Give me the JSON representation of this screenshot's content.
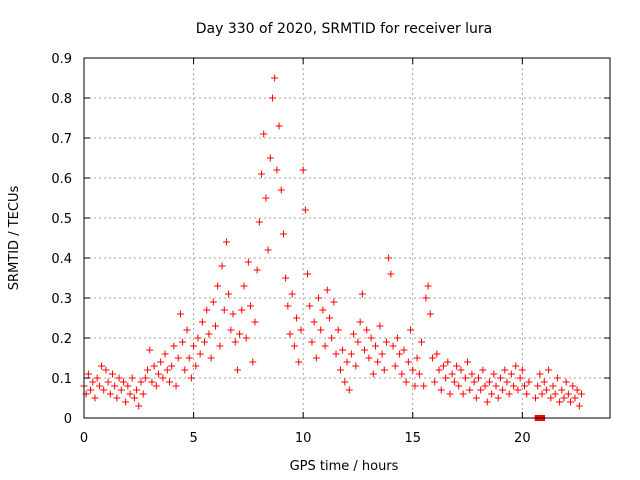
{
  "chart_data": {
    "type": "scatter",
    "title": "Day 330 of 2020, SRMTID for receiver lura",
    "xlabel": "GPS time / hours",
    "ylabel": "SRMTID / TECUs",
    "xlim": [
      0,
      24
    ],
    "ylim": [
      0,
      0.9
    ],
    "xticks": [
      0,
      5,
      10,
      15,
      20
    ],
    "xtick_labels": [
      "0",
      "5",
      "10",
      "15",
      "20"
    ],
    "yticks": [
      0,
      0.1,
      0.2,
      0.3,
      0.4,
      0.5,
      0.6,
      0.7,
      0.8,
      0.9
    ],
    "ytick_labels": [
      "0",
      "0.1",
      "0.2",
      "0.3",
      "0.4",
      "0.5",
      "0.6",
      "0.7",
      "0.8",
      "0.9"
    ],
    "grid": true,
    "marker": "plus",
    "color": "#ff0000",
    "series": [
      {
        "name": "SRMTID",
        "points": [
          [
            0.0,
            0.08
          ],
          [
            0.1,
            0.06
          ],
          [
            0.2,
            0.11
          ],
          [
            0.3,
            0.07
          ],
          [
            0.4,
            0.09
          ],
          [
            0.5,
            0.05
          ],
          [
            0.6,
            0.1
          ],
          [
            0.7,
            0.08
          ],
          [
            0.8,
            0.13
          ],
          [
            0.9,
            0.07
          ],
          [
            1.0,
            0.12
          ],
          [
            1.1,
            0.09
          ],
          [
            1.2,
            0.06
          ],
          [
            1.3,
            0.11
          ],
          [
            1.4,
            0.08
          ],
          [
            1.5,
            0.05
          ],
          [
            1.6,
            0.1
          ],
          [
            1.7,
            0.07
          ],
          [
            1.8,
            0.09
          ],
          [
            1.9,
            0.04
          ],
          [
            2.0,
            0.08
          ],
          [
            2.1,
            0.06
          ],
          [
            2.2,
            0.1
          ],
          [
            2.3,
            0.05
          ],
          [
            2.4,
            0.07
          ],
          [
            2.5,
            0.03
          ],
          [
            2.6,
            0.09
          ],
          [
            2.7,
            0.06
          ],
          [
            2.8,
            0.1
          ],
          [
            2.9,
            0.12
          ],
          [
            3.0,
            0.17
          ],
          [
            3.1,
            0.09
          ],
          [
            3.2,
            0.13
          ],
          [
            3.3,
            0.08
          ],
          [
            3.4,
            0.11
          ],
          [
            3.5,
            0.14
          ],
          [
            3.6,
            0.1
          ],
          [
            3.7,
            0.16
          ],
          [
            3.8,
            0.12
          ],
          [
            3.9,
            0.09
          ],
          [
            4.0,
            0.13
          ],
          [
            4.1,
            0.18
          ],
          [
            4.2,
            0.08
          ],
          [
            4.3,
            0.15
          ],
          [
            4.4,
            0.26
          ],
          [
            4.5,
            0.19
          ],
          [
            4.6,
            0.12
          ],
          [
            4.7,
            0.22
          ],
          [
            4.8,
            0.15
          ],
          [
            4.9,
            0.1
          ],
          [
            5.0,
            0.18
          ],
          [
            5.1,
            0.13
          ],
          [
            5.2,
            0.2
          ],
          [
            5.3,
            0.16
          ],
          [
            5.4,
            0.24
          ],
          [
            5.5,
            0.19
          ],
          [
            5.6,
            0.27
          ],
          [
            5.7,
            0.21
          ],
          [
            5.8,
            0.15
          ],
          [
            5.9,
            0.29
          ],
          [
            6.0,
            0.23
          ],
          [
            6.1,
            0.33
          ],
          [
            6.2,
            0.18
          ],
          [
            6.3,
            0.38
          ],
          [
            6.4,
            0.27
          ],
          [
            6.5,
            0.44
          ],
          [
            6.6,
            0.31
          ],
          [
            6.7,
            0.22
          ],
          [
            6.8,
            0.26
          ],
          [
            6.9,
            0.19
          ],
          [
            7.0,
            0.12
          ],
          [
            7.1,
            0.21
          ],
          [
            7.2,
            0.27
          ],
          [
            7.3,
            0.33
          ],
          [
            7.4,
            0.2
          ],
          [
            7.5,
            0.39
          ],
          [
            7.6,
            0.28
          ],
          [
            7.7,
            0.14
          ],
          [
            7.8,
            0.24
          ],
          [
            7.9,
            0.37
          ],
          [
            8.0,
            0.49
          ],
          [
            8.1,
            0.61
          ],
          [
            8.2,
            0.71
          ],
          [
            8.3,
            0.55
          ],
          [
            8.4,
            0.42
          ],
          [
            8.5,
            0.65
          ],
          [
            8.6,
            0.8
          ],
          [
            8.7,
            0.85
          ],
          [
            8.8,
            0.62
          ],
          [
            8.9,
            0.73
          ],
          [
            9.0,
            0.57
          ],
          [
            9.1,
            0.46
          ],
          [
            9.2,
            0.35
          ],
          [
            9.3,
            0.28
          ],
          [
            9.4,
            0.21
          ],
          [
            9.5,
            0.31
          ],
          [
            9.6,
            0.18
          ],
          [
            9.7,
            0.25
          ],
          [
            9.8,
            0.14
          ],
          [
            9.9,
            0.22
          ],
          [
            10.0,
            0.62
          ],
          [
            10.1,
            0.52
          ],
          [
            10.2,
            0.36
          ],
          [
            10.3,
            0.28
          ],
          [
            10.4,
            0.19
          ],
          [
            10.5,
            0.24
          ],
          [
            10.6,
            0.15
          ],
          [
            10.7,
            0.3
          ],
          [
            10.8,
            0.22
          ],
          [
            10.9,
            0.27
          ],
          [
            11.0,
            0.18
          ],
          [
            11.1,
            0.32
          ],
          [
            11.2,
            0.25
          ],
          [
            11.3,
            0.2
          ],
          [
            11.4,
            0.29
          ],
          [
            11.5,
            0.16
          ],
          [
            11.6,
            0.22
          ],
          [
            11.7,
            0.12
          ],
          [
            11.8,
            0.17
          ],
          [
            11.9,
            0.09
          ],
          [
            12.0,
            0.14
          ],
          [
            12.1,
            0.07
          ],
          [
            12.2,
            0.16
          ],
          [
            12.3,
            0.21
          ],
          [
            12.4,
            0.13
          ],
          [
            12.5,
            0.19
          ],
          [
            12.6,
            0.24
          ],
          [
            12.7,
            0.31
          ],
          [
            12.8,
            0.17
          ],
          [
            12.9,
            0.22
          ],
          [
            13.0,
            0.15
          ],
          [
            13.1,
            0.2
          ],
          [
            13.2,
            0.11
          ],
          [
            13.3,
            0.18
          ],
          [
            13.4,
            0.14
          ],
          [
            13.5,
            0.23
          ],
          [
            13.6,
            0.16
          ],
          [
            13.7,
            0.12
          ],
          [
            13.8,
            0.19
          ],
          [
            13.9,
            0.4
          ],
          [
            14.0,
            0.36
          ],
          [
            14.1,
            0.18
          ],
          [
            14.2,
            0.13
          ],
          [
            14.3,
            0.2
          ],
          [
            14.4,
            0.16
          ],
          [
            14.5,
            0.11
          ],
          [
            14.6,
            0.17
          ],
          [
            14.7,
            0.09
          ],
          [
            14.8,
            0.14
          ],
          [
            14.9,
            0.22
          ],
          [
            15.0,
            0.12
          ],
          [
            15.1,
            0.08
          ],
          [
            15.2,
            0.15
          ],
          [
            15.3,
            0.11
          ],
          [
            15.4,
            0.19
          ],
          [
            15.5,
            0.08
          ],
          [
            15.6,
            0.3
          ],
          [
            15.7,
            0.33
          ],
          [
            15.8,
            0.26
          ],
          [
            15.9,
            0.15
          ],
          [
            16.0,
            0.09
          ],
          [
            16.1,
            0.16
          ],
          [
            16.2,
            0.12
          ],
          [
            16.3,
            0.07
          ],
          [
            16.4,
            0.13
          ],
          [
            16.5,
            0.1
          ],
          [
            16.6,
            0.14
          ],
          [
            16.7,
            0.06
          ],
          [
            16.8,
            0.11
          ],
          [
            16.9,
            0.09
          ],
          [
            17.0,
            0.13
          ],
          [
            17.1,
            0.08
          ],
          [
            17.2,
            0.12
          ],
          [
            17.3,
            0.06
          ],
          [
            17.4,
            0.1
          ],
          [
            17.5,
            0.14
          ],
          [
            17.6,
            0.07
          ],
          [
            17.7,
            0.11
          ],
          [
            17.8,
            0.09
          ],
          [
            17.9,
            0.05
          ],
          [
            18.0,
            0.1
          ],
          [
            18.1,
            0.07
          ],
          [
            18.2,
            0.12
          ],
          [
            18.3,
            0.08
          ],
          [
            18.4,
            0.04
          ],
          [
            18.5,
            0.09
          ],
          [
            18.6,
            0.06
          ],
          [
            18.7,
            0.11
          ],
          [
            18.8,
            0.08
          ],
          [
            18.9,
            0.05
          ],
          [
            19.0,
            0.1
          ],
          [
            19.1,
            0.07
          ],
          [
            19.2,
            0.12
          ],
          [
            19.3,
            0.09
          ],
          [
            19.4,
            0.06
          ],
          [
            19.5,
            0.11
          ],
          [
            19.6,
            0.08
          ],
          [
            19.7,
            0.13
          ],
          [
            19.8,
            0.07
          ],
          [
            19.9,
            0.1
          ],
          [
            20.0,
            0.12
          ],
          [
            20.1,
            0.08
          ],
          [
            20.2,
            0.06
          ],
          [
            20.3,
            0.09
          ],
          [
            20.6,
            0.05
          ],
          [
            20.7,
            0.08
          ],
          [
            20.8,
            0.11
          ],
          [
            20.9,
            0.06
          ],
          [
            21.0,
            0.09
          ],
          [
            21.1,
            0.07
          ],
          [
            21.2,
            0.12
          ],
          [
            21.3,
            0.05
          ],
          [
            21.4,
            0.08
          ],
          [
            21.5,
            0.06
          ],
          [
            21.6,
            0.1
          ],
          [
            21.7,
            0.04
          ],
          [
            21.8,
            0.07
          ],
          [
            21.9,
            0.05
          ],
          [
            22.0,
            0.09
          ],
          [
            22.1,
            0.06
          ],
          [
            22.2,
            0.04
          ],
          [
            22.3,
            0.08
          ],
          [
            22.4,
            0.05
          ],
          [
            22.5,
            0.07
          ],
          [
            22.6,
            0.03
          ],
          [
            22.7,
            0.06
          ]
        ]
      },
      {
        "name": "zero-markers",
        "marker": "square",
        "points": [
          [
            20.7,
            0.0
          ],
          [
            20.9,
            0.0
          ]
        ]
      }
    ]
  }
}
